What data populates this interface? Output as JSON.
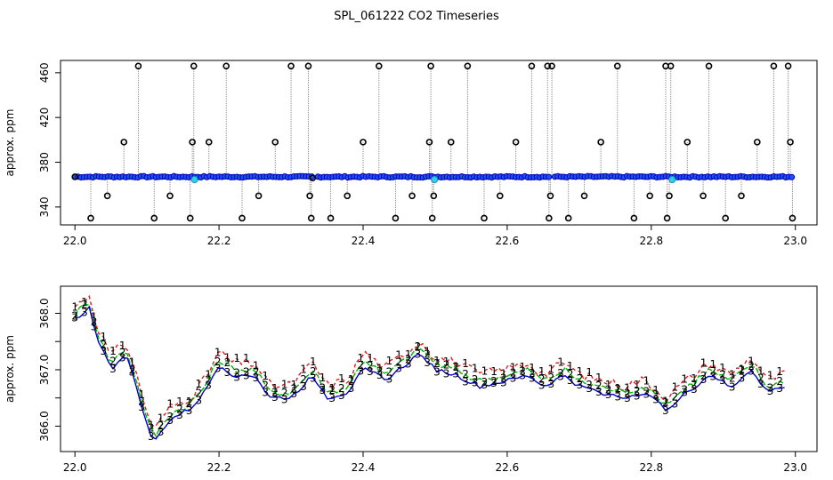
{
  "title": "SPL_061222  CO2 Timeseries",
  "colors": {
    "series1": "#e41a1c",
    "series2": "#00b400",
    "series3": "#0000cc",
    "raw": "#000000",
    "flag": "#33ccee",
    "grid": "#888888"
  },
  "chart_data": [
    {
      "type": "scatter",
      "title": "SPL_061222  CO2 Timeseries",
      "xlabel": "",
      "ylabel": "approx. ppm",
      "xlim": [
        21.98,
        23.03
      ],
      "ylim": [
        324,
        471
      ],
      "xticks": [
        22.0,
        22.2,
        22.4,
        22.6,
        22.8,
        23.0
      ],
      "xtick_labels": [
        "22.0",
        "22.2",
        "22.4",
        "22.6",
        "22.8",
        "23.0"
      ],
      "yticks": [
        340,
        380,
        420,
        460
      ],
      "ytick_labels": [
        "340",
        "380",
        "420",
        "460"
      ],
      "baseline_ppm": 367,
      "baseline_range": [
        22.0,
        22.995
      ],
      "gaps": [
        22.332,
        22.662
      ],
      "spike_x": [
        22.0,
        22.022,
        22.045,
        22.068,
        22.088,
        22.11,
        22.132,
        22.16,
        22.163,
        22.165,
        22.186,
        22.21,
        22.232,
        22.255,
        22.278,
        22.3,
        22.324,
        22.326,
        22.328,
        22.33,
        22.355,
        22.378,
        22.4,
        22.422,
        22.445,
        22.468,
        22.492,
        22.494,
        22.496,
        22.498,
        22.522,
        22.545,
        22.568,
        22.59,
        22.612,
        22.634,
        22.656,
        22.658,
        22.66,
        22.662,
        22.685,
        22.707,
        22.73,
        22.753,
        22.776,
        22.798,
        22.82,
        22.822,
        22.825,
        22.827,
        22.85,
        22.872,
        22.88,
        22.903,
        22.925,
        22.947,
        22.97,
        22.99,
        22.993,
        22.996
      ],
      "spike_y": [
        367,
        330,
        350,
        398,
        466,
        330,
        350,
        330,
        398,
        466,
        398,
        466,
        330,
        350,
        398,
        466,
        466,
        350,
        330,
        366,
        330,
        350,
        398,
        466,
        330,
        350,
        398,
        466,
        330,
        350,
        398,
        466,
        330,
        350,
        398,
        466,
        466,
        330,
        350,
        466,
        330,
        350,
        398,
        466,
        330,
        350,
        466,
        330,
        350,
        466,
        398,
        350,
        466,
        330,
        350,
        398,
        466,
        466,
        398,
        330
      ],
      "flag_x": [
        22.166,
        22.499,
        22.829
      ]
    },
    {
      "type": "scatter",
      "title": "",
      "xlabel": "",
      "ylabel": "approx. ppm",
      "xlim": [
        21.98,
        23.03
      ],
      "ylim": [
        365.55,
        368.48
      ],
      "xticks": [
        22.0,
        22.2,
        22.4,
        22.6,
        22.8,
        23.0
      ],
      "xtick_labels": [
        "22.0",
        "22.2",
        "22.4",
        "22.6",
        "22.8",
        "23.0"
      ],
      "yticks": [
        366.0,
        366.5,
        367.0,
        367.5,
        368.0
      ],
      "ytick_labels": [
        "366.0",
        "",
        "367.0",
        "",
        "368.0"
      ],
      "x": [
        22.0,
        22.02,
        22.03,
        22.05,
        22.07,
        22.09,
        22.1,
        22.11,
        22.13,
        22.16,
        22.18,
        22.2,
        22.22,
        22.25,
        22.27,
        22.3,
        22.33,
        22.35,
        22.38,
        22.4,
        22.43,
        22.45,
        22.48,
        22.5,
        22.53,
        22.56,
        22.6,
        22.63,
        22.65,
        22.68,
        22.7,
        22.73,
        22.76,
        22.79,
        22.82,
        22.85,
        22.88,
        22.91,
        22.94,
        22.96,
        22.985
      ],
      "series": [
        {
          "name": "1",
          "offset": 0.22,
          "jitter": 0.18
        },
        {
          "name": "2",
          "offset": 0.1,
          "jitter": 0.12
        },
        {
          "name": "3",
          "offset": 0.0,
          "jitter": 0.08
        }
      ],
      "values": [
        367.9,
        368.1,
        367.6,
        367.0,
        367.3,
        366.5,
        366.0,
        365.7,
        366.1,
        366.3,
        366.6,
        367.1,
        366.9,
        366.9,
        366.5,
        366.5,
        366.9,
        366.5,
        366.6,
        367.1,
        366.8,
        367.0,
        367.3,
        367.0,
        366.9,
        366.7,
        366.8,
        366.9,
        366.7,
        366.9,
        366.7,
        366.6,
        366.5,
        366.6,
        366.3,
        366.6,
        366.9,
        366.7,
        367.0,
        366.6,
        366.7
      ]
    }
  ]
}
